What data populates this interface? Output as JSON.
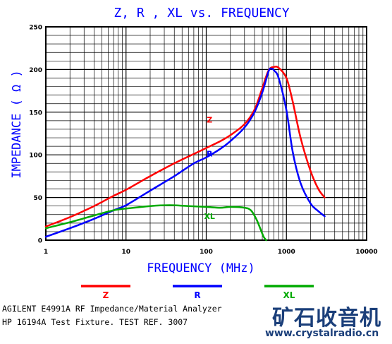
{
  "chart_data": {
    "type": "line",
    "title": "Z, R , XL vs. FREQUENCY",
    "xlabel": "FREQUENCY (MHz)",
    "ylabel": "IMPEDANCE ( Ω )",
    "x_scale": "log",
    "xlim": [
      1,
      10000
    ],
    "ylim": [
      0,
      250
    ],
    "x_ticks": [
      1,
      10,
      100,
      1000,
      10000
    ],
    "x_tick_labels": [
      "1",
      "10",
      "100",
      "1000",
      "10000"
    ],
    "y_ticks": [
      0,
      50,
      100,
      150,
      200,
      250
    ],
    "y_tick_labels": [
      "0",
      "50",
      "100",
      "150",
      "200",
      "250"
    ],
    "grid": true,
    "legend_position": "bottom",
    "series": [
      {
        "name": "Z",
        "color": "#ff0000",
        "label_at": {
          "x": 110,
          "y": 138
        },
        "points": [
          [
            1,
            16
          ],
          [
            2,
            27
          ],
          [
            4,
            40
          ],
          [
            7,
            52
          ],
          [
            10,
            59
          ],
          [
            20,
            75
          ],
          [
            40,
            90
          ],
          [
            70,
            101
          ],
          [
            100,
            108
          ],
          [
            150,
            116
          ],
          [
            200,
            123
          ],
          [
            300,
            136
          ],
          [
            400,
            153
          ],
          [
            500,
            178
          ],
          [
            600,
            199
          ],
          [
            700,
            203
          ],
          [
            800,
            202
          ],
          [
            1000,
            190
          ],
          [
            1200,
            162
          ],
          [
            1500,
            120
          ],
          [
            2000,
            81
          ],
          [
            2500,
            60
          ],
          [
            3000,
            50
          ]
        ]
      },
      {
        "name": "R",
        "color": "#0000ff",
        "label_at": {
          "x": 110,
          "y": 98
        },
        "points": [
          [
            1,
            4
          ],
          [
            2,
            14
          ],
          [
            4,
            25
          ],
          [
            7,
            35
          ],
          [
            10,
            41
          ],
          [
            20,
            58
          ],
          [
            40,
            75
          ],
          [
            70,
            90
          ],
          [
            100,
            97
          ],
          [
            150,
            107
          ],
          [
            200,
            116
          ],
          [
            300,
            132
          ],
          [
            400,
            150
          ],
          [
            500,
            173
          ],
          [
            600,
            198
          ],
          [
            650,
            201
          ],
          [
            700,
            199
          ],
          [
            800,
            190
          ],
          [
            1000,
            152
          ],
          [
            1200,
            103
          ],
          [
            1500,
            67
          ],
          [
            2000,
            43
          ],
          [
            2500,
            34
          ],
          [
            3000,
            28
          ]
        ]
      },
      {
        "name": "XL",
        "color": "#00aa00",
        "label_at": {
          "x": 110,
          "y": 25
        },
        "points": [
          [
            1,
            14
          ],
          [
            2,
            21
          ],
          [
            4,
            29
          ],
          [
            7,
            35
          ],
          [
            10,
            37
          ],
          [
            20,
            40
          ],
          [
            35,
            41
          ],
          [
            60,
            40
          ],
          [
            100,
            39
          ],
          [
            150,
            38
          ],
          [
            200,
            39
          ],
          [
            300,
            38
          ],
          [
            360,
            35
          ],
          [
            420,
            25
          ],
          [
            470,
            14
          ],
          [
            520,
            4
          ],
          [
            560,
            0
          ]
        ]
      }
    ]
  },
  "footer": {
    "line1": "AGILENT E4991A RF Impedance/Material Analyzer",
    "line2": "HP 16194A Test Fixture.   TEST REF. 3007"
  },
  "branding": {
    "name": "矿石收音机",
    "website": "www.crystalradio.cn",
    "color": "#1b3f7a"
  }
}
